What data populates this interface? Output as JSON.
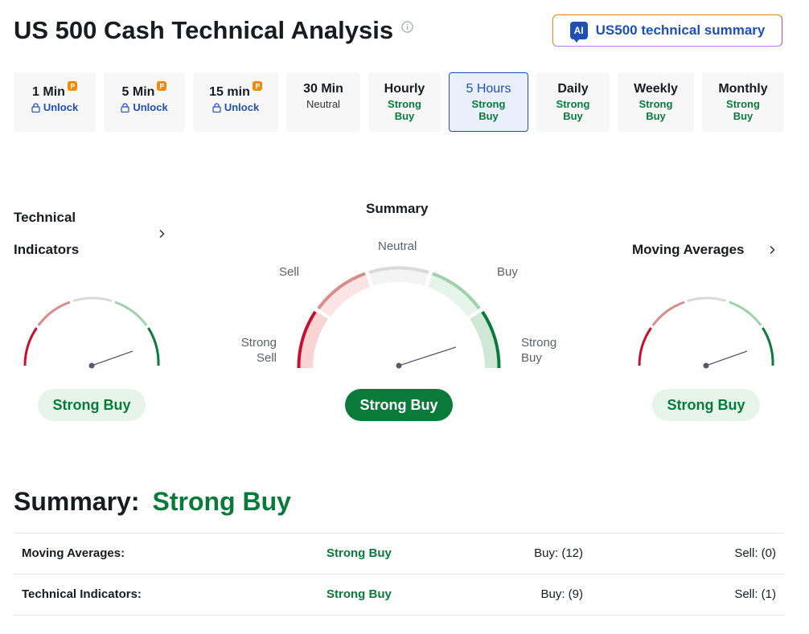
{
  "header": {
    "title": "US 500 Cash Technical Analysis",
    "ai_button_badge": "AI",
    "ai_button_label": "US500 technical summary"
  },
  "timeframes": [
    {
      "name": "1 Min",
      "status": "Unlock",
      "locked": true
    },
    {
      "name": "5 Min",
      "status": "Unlock",
      "locked": true
    },
    {
      "name": "15 min",
      "status": "Unlock",
      "locked": true
    },
    {
      "name": "30 Min",
      "status": "Neutral"
    },
    {
      "name": "Hourly",
      "status_line1": "Strong",
      "status_line2": "Buy"
    },
    {
      "name": "5 Hours",
      "status_line1": "Strong",
      "status_line2": "Buy",
      "active": true
    },
    {
      "name": "Daily",
      "status_line1": "Strong",
      "status_line2": "Buy"
    },
    {
      "name": "Weekly",
      "status_line1": "Strong",
      "status_line2": "Buy"
    },
    {
      "name": "Monthly",
      "status_line1": "Strong",
      "status_line2": "Buy"
    }
  ],
  "gauges": {
    "technical": {
      "heading_line1": "Technical",
      "heading_line2": "Indicators",
      "result": "Strong Buy"
    },
    "summary": {
      "heading": "Summary",
      "labels": {
        "neutral": "Neutral",
        "sell": "Sell",
        "buy": "Buy",
        "strong_sell_1": "Strong",
        "strong_sell_2": "Sell",
        "strong_buy_1": "Strong",
        "strong_buy_2": "Buy"
      },
      "result": "Strong Buy"
    },
    "moving": {
      "heading": "Moving Averages",
      "result": "Strong Buy"
    }
  },
  "summary": {
    "label": "Summary:",
    "value": "Strong Buy",
    "rows": [
      {
        "name": "Moving Averages:",
        "signal": "Strong Buy",
        "buy": "Buy: (12)",
        "sell": "Sell: (0)"
      },
      {
        "name": "Technical Indicators:",
        "signal": "Strong Buy",
        "buy": "Buy: (9)",
        "sell": "Sell: (1)"
      }
    ]
  },
  "colors": {
    "strong_sell": "#c8102e",
    "sell": "#d98c8c",
    "neutral": "#d9d9d9",
    "buy": "#9fd1ad",
    "strong_buy": "#0a7a3a",
    "accent_blue": "#1f4fb4",
    "pro_orange": "#f08a00"
  },
  "icons": {
    "info": "info-circle-icon",
    "chevron": "chevron-right-icon",
    "lock": "lock-icon",
    "pro": "pro-badge-icon",
    "ai": "ai-chat-icon"
  }
}
